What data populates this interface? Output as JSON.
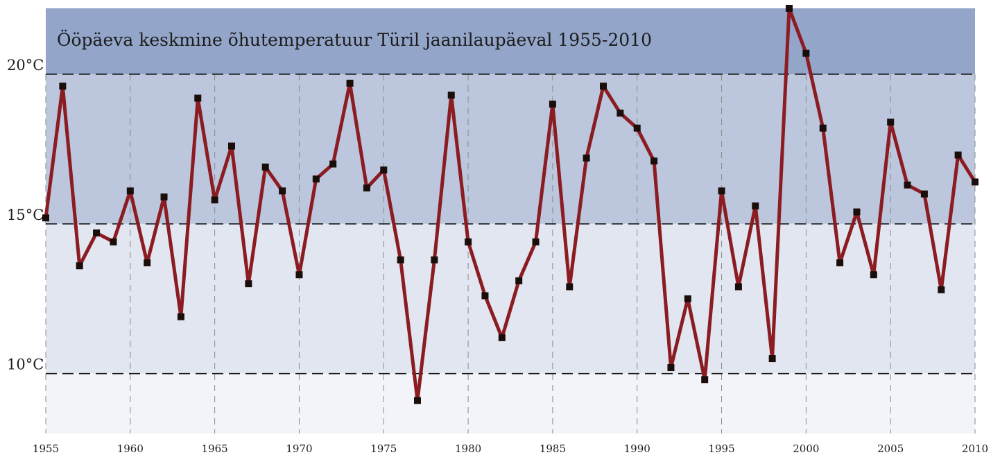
{
  "chart_data": {
    "type": "line",
    "title": "Ööpäeva keskmine õhutemperatuur Türil jaanilaupäeval 1955-2010",
    "xlabel": "",
    "ylabel": "",
    "x": [
      1955,
      1956,
      1957,
      1958,
      1959,
      1960,
      1961,
      1962,
      1963,
      1964,
      1965,
      1966,
      1967,
      1968,
      1969,
      1970,
      1971,
      1972,
      1973,
      1974,
      1975,
      1976,
      1977,
      1978,
      1979,
      1980,
      1981,
      1982,
      1983,
      1984,
      1985,
      1986,
      1987,
      1988,
      1989,
      1990,
      1991,
      1992,
      1993,
      1994,
      1995,
      1996,
      1997,
      1998,
      1999,
      2000,
      2001,
      2002,
      2003,
      2004,
      2005,
      2006,
      2007,
      2008,
      2009,
      2010
    ],
    "values": [
      15.2,
      19.6,
      13.6,
      14.7,
      14.4,
      16.1,
      13.7,
      15.9,
      11.9,
      19.2,
      15.8,
      17.6,
      13.0,
      16.9,
      16.1,
      13.3,
      16.5,
      17.0,
      19.7,
      16.2,
      16.8,
      13.8,
      9.1,
      13.8,
      19.3,
      14.4,
      12.6,
      11.2,
      13.1,
      14.4,
      19.0,
      12.9,
      17.2,
      19.6,
      18.7,
      18.2,
      17.1,
      10.2,
      12.5,
      9.8,
      16.1,
      12.9,
      15.6,
      10.5,
      22.2,
      20.7,
      18.2,
      13.7,
      15.4,
      13.3,
      18.4,
      16.3,
      16.0,
      12.8,
      17.3,
      16.4
    ],
    "x_ticks": [
      1955,
      1960,
      1965,
      1970,
      1975,
      1980,
      1985,
      1990,
      1995,
      2000,
      2005,
      2010
    ],
    "x_tick_labels": [
      "1955",
      "1960",
      "1965",
      "1970",
      "1975",
      "1980",
      "1985",
      "1990",
      "1995",
      "2000",
      "2005",
      "2010"
    ],
    "y_ticks": [
      10,
      15,
      20
    ],
    "y_tick_labels": [
      "10°C",
      "15°C",
      "20°C"
    ],
    "xlim": [
      1955,
      2010
    ],
    "ylim": [
      8.0,
      22.2
    ],
    "bands": [
      {
        "from": 20,
        "to": 22.2,
        "color": "#93a5c9"
      },
      {
        "from": 15,
        "to": 20,
        "color": "#bcc6dc"
      },
      {
        "from": 10,
        "to": 15,
        "color": "#e2e6f0"
      },
      {
        "from": 8.0,
        "to": 10,
        "color": "#f2f4f9"
      }
    ],
    "line_color": "#8b1c22",
    "marker_color": "#1a0e0b",
    "grid": true
  }
}
